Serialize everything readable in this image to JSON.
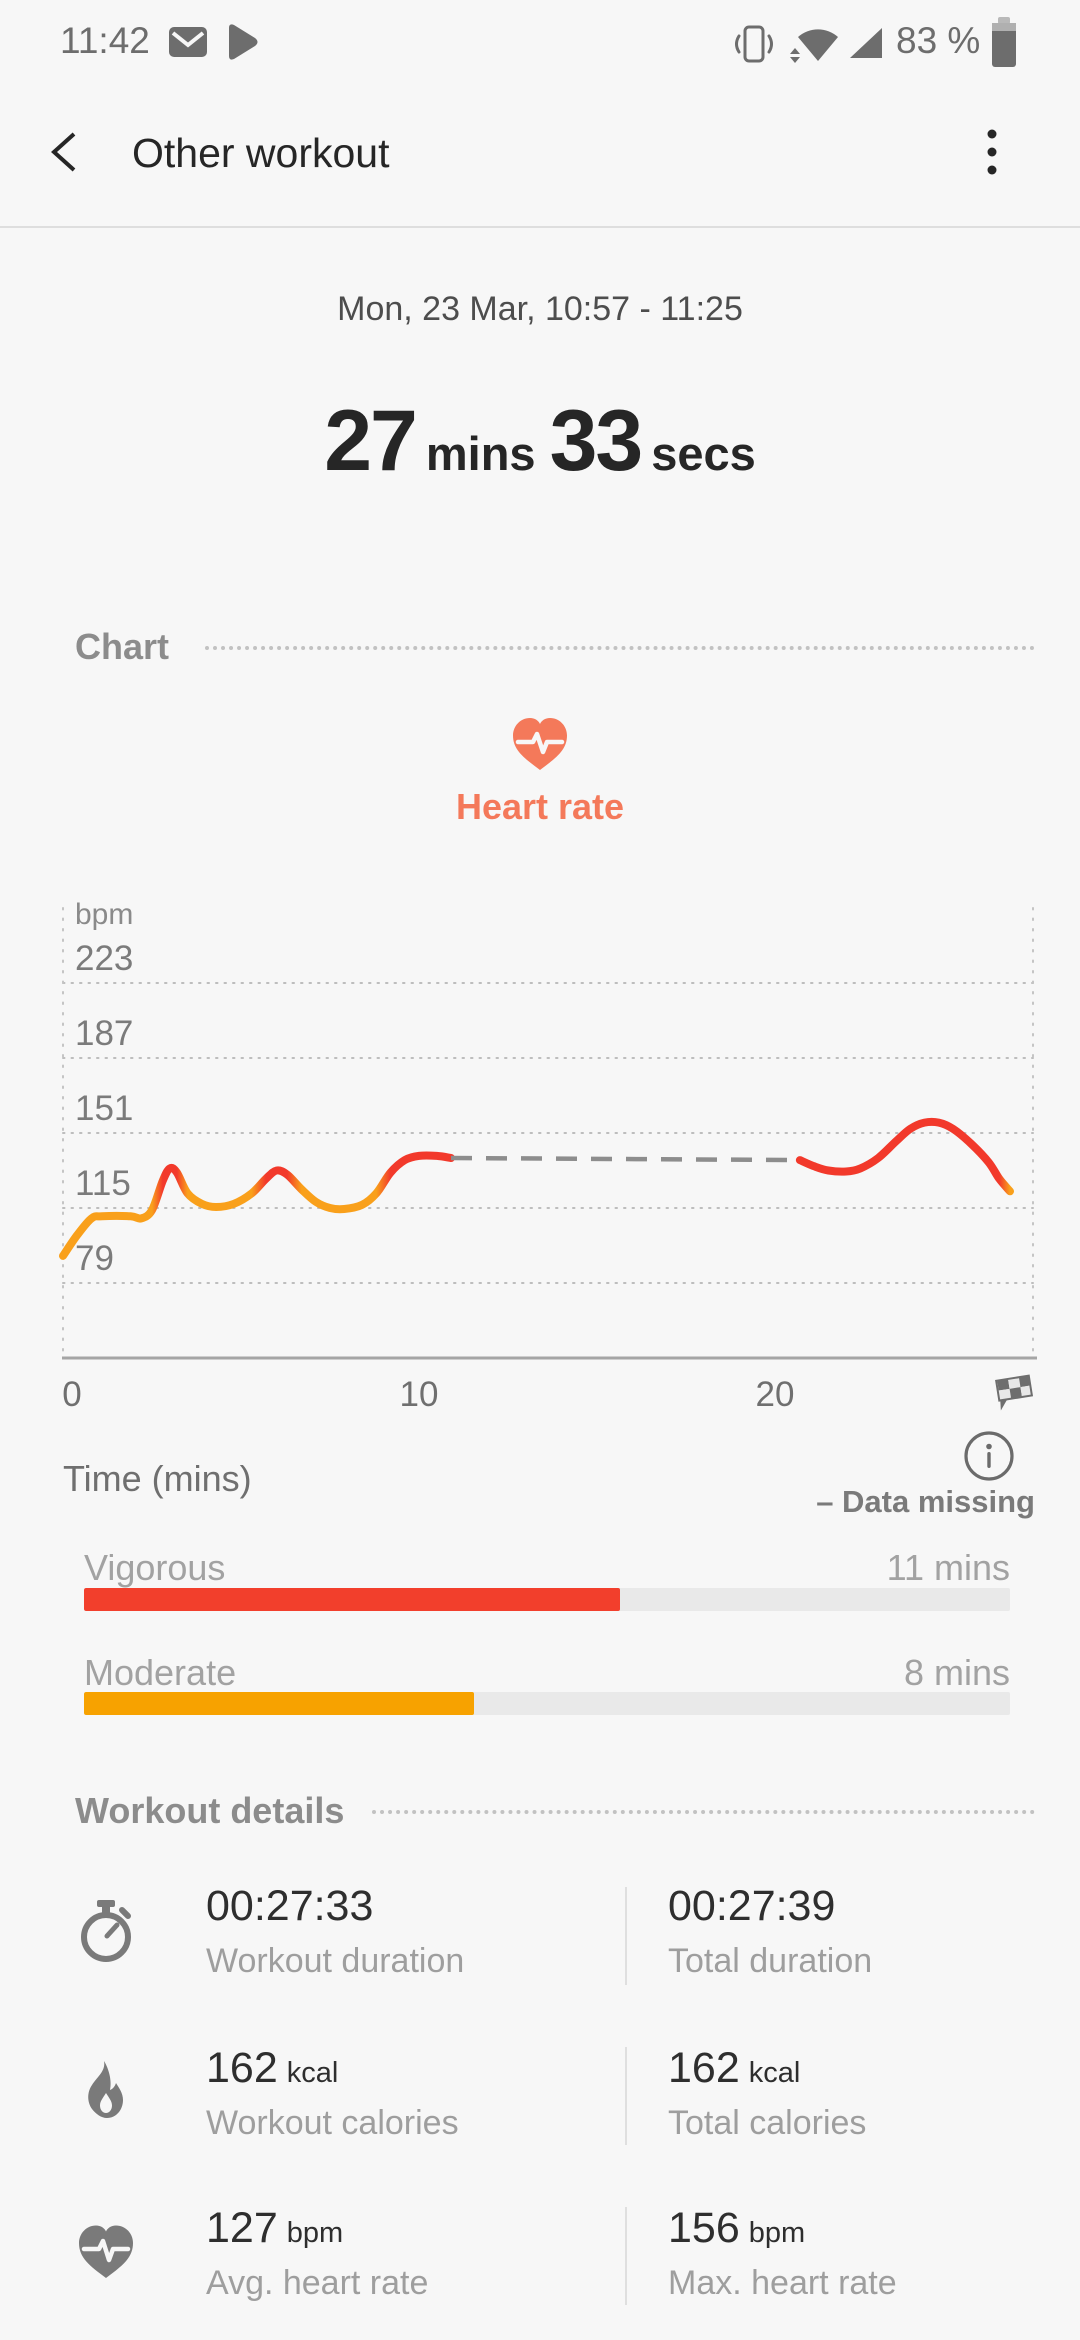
{
  "status_bar": {
    "time": "11:42",
    "battery_percent": "83 %",
    "left_icons": [
      "gmail-notification",
      "play-notification"
    ],
    "right_icons": [
      "vibrate",
      "wifi",
      "cellular-signal",
      "battery"
    ]
  },
  "header": {
    "title": "Other workout"
  },
  "summary": {
    "date_range": "Mon, 23 Mar, 10:57 - 11:25",
    "duration": {
      "mins_value": "27",
      "mins_unit": "mins",
      "secs_value": "33",
      "secs_unit": "secs"
    }
  },
  "chart_section": {
    "title": "Chart",
    "metric_label": "Heart rate",
    "time_axis_label": "Time (mins)",
    "legend_missing": "– Data missing"
  },
  "chart_data": {
    "type": "line",
    "title": "Heart rate",
    "unit": "bpm",
    "xlabel": "Time (mins)",
    "y_ticks": [
      223,
      187,
      151,
      115,
      79
    ],
    "x_ticks": [
      0,
      10,
      20
    ],
    "x_range": [
      0,
      27.3
    ],
    "grid": "dotted",
    "zone_threshold_bpm": 126,
    "colors": {
      "moderate": "#f9a01b",
      "vigorous": "#f2392b",
      "missing": "#8d8d8d"
    },
    "series": [
      {
        "name": "heart-rate-recorded-1",
        "style": "solid",
        "points": [
          [
            0,
            92
          ],
          [
            0.4,
            102
          ],
          [
            0.8,
            110
          ],
          [
            1.1,
            111
          ],
          [
            1.9,
            111
          ],
          [
            2.2,
            110
          ],
          [
            2.5,
            114
          ],
          [
            2.8,
            128
          ],
          [
            3.0,
            134
          ],
          [
            3.2,
            132
          ],
          [
            3.5,
            122
          ],
          [
            3.9,
            117
          ],
          [
            4.3,
            115.5
          ],
          [
            4.8,
            117
          ],
          [
            5.3,
            122
          ],
          [
            5.7,
            129
          ],
          [
            6.0,
            133
          ],
          [
            6.3,
            131
          ],
          [
            6.7,
            124
          ],
          [
            7.1,
            118
          ],
          [
            7.5,
            115
          ],
          [
            7.9,
            114.5
          ],
          [
            8.4,
            116.5
          ],
          [
            8.8,
            122
          ],
          [
            9.2,
            132
          ],
          [
            9.6,
            138
          ],
          [
            10.0,
            140
          ],
          [
            10.5,
            140
          ],
          [
            10.9,
            139
          ]
        ]
      },
      {
        "name": "data-missing-gap",
        "style": "dashed",
        "points": [
          [
            10.9,
            139
          ],
          [
            20.7,
            138
          ]
        ]
      },
      {
        "name": "heart-rate-recorded-2",
        "style": "solid",
        "points": [
          [
            20.7,
            138
          ],
          [
            21.1,
            135
          ],
          [
            21.5,
            133
          ],
          [
            22.0,
            132.5
          ],
          [
            22.4,
            134
          ],
          [
            22.9,
            139
          ],
          [
            23.4,
            147
          ],
          [
            23.8,
            153
          ],
          [
            24.2,
            156
          ],
          [
            24.6,
            156
          ],
          [
            25.0,
            153
          ],
          [
            25.5,
            146
          ],
          [
            26.0,
            137
          ],
          [
            26.3,
            129
          ],
          [
            26.6,
            123
          ]
        ]
      }
    ],
    "legend": [
      {
        "label": "– Data missing",
        "style": "dashed"
      }
    ]
  },
  "zones": [
    {
      "label": "Vigorous",
      "value": "11 mins",
      "minutes": 11,
      "color": "#f23f2c"
    },
    {
      "label": "Moderate",
      "value": "8 mins",
      "minutes": 8,
      "color": "#f7a200"
    }
  ],
  "details_section": {
    "title": "Workout details",
    "rows": [
      {
        "icon": "stopwatch-icon",
        "left": {
          "value": "00:27:33",
          "unit": "",
          "label": "Workout duration"
        },
        "right": {
          "value": "00:27:39",
          "unit": "",
          "label": "Total duration"
        }
      },
      {
        "icon": "flame-icon",
        "left": {
          "value": "162",
          "unit": "kcal",
          "label": "Workout calories"
        },
        "right": {
          "value": "162",
          "unit": "kcal",
          "label": "Total calories"
        }
      },
      {
        "icon": "heart-icon",
        "left": {
          "value": "127",
          "unit": "bpm",
          "label": "Avg. heart rate"
        },
        "right": {
          "value": "156",
          "unit": "bpm",
          "label": "Max. heart rate"
        }
      }
    ]
  }
}
